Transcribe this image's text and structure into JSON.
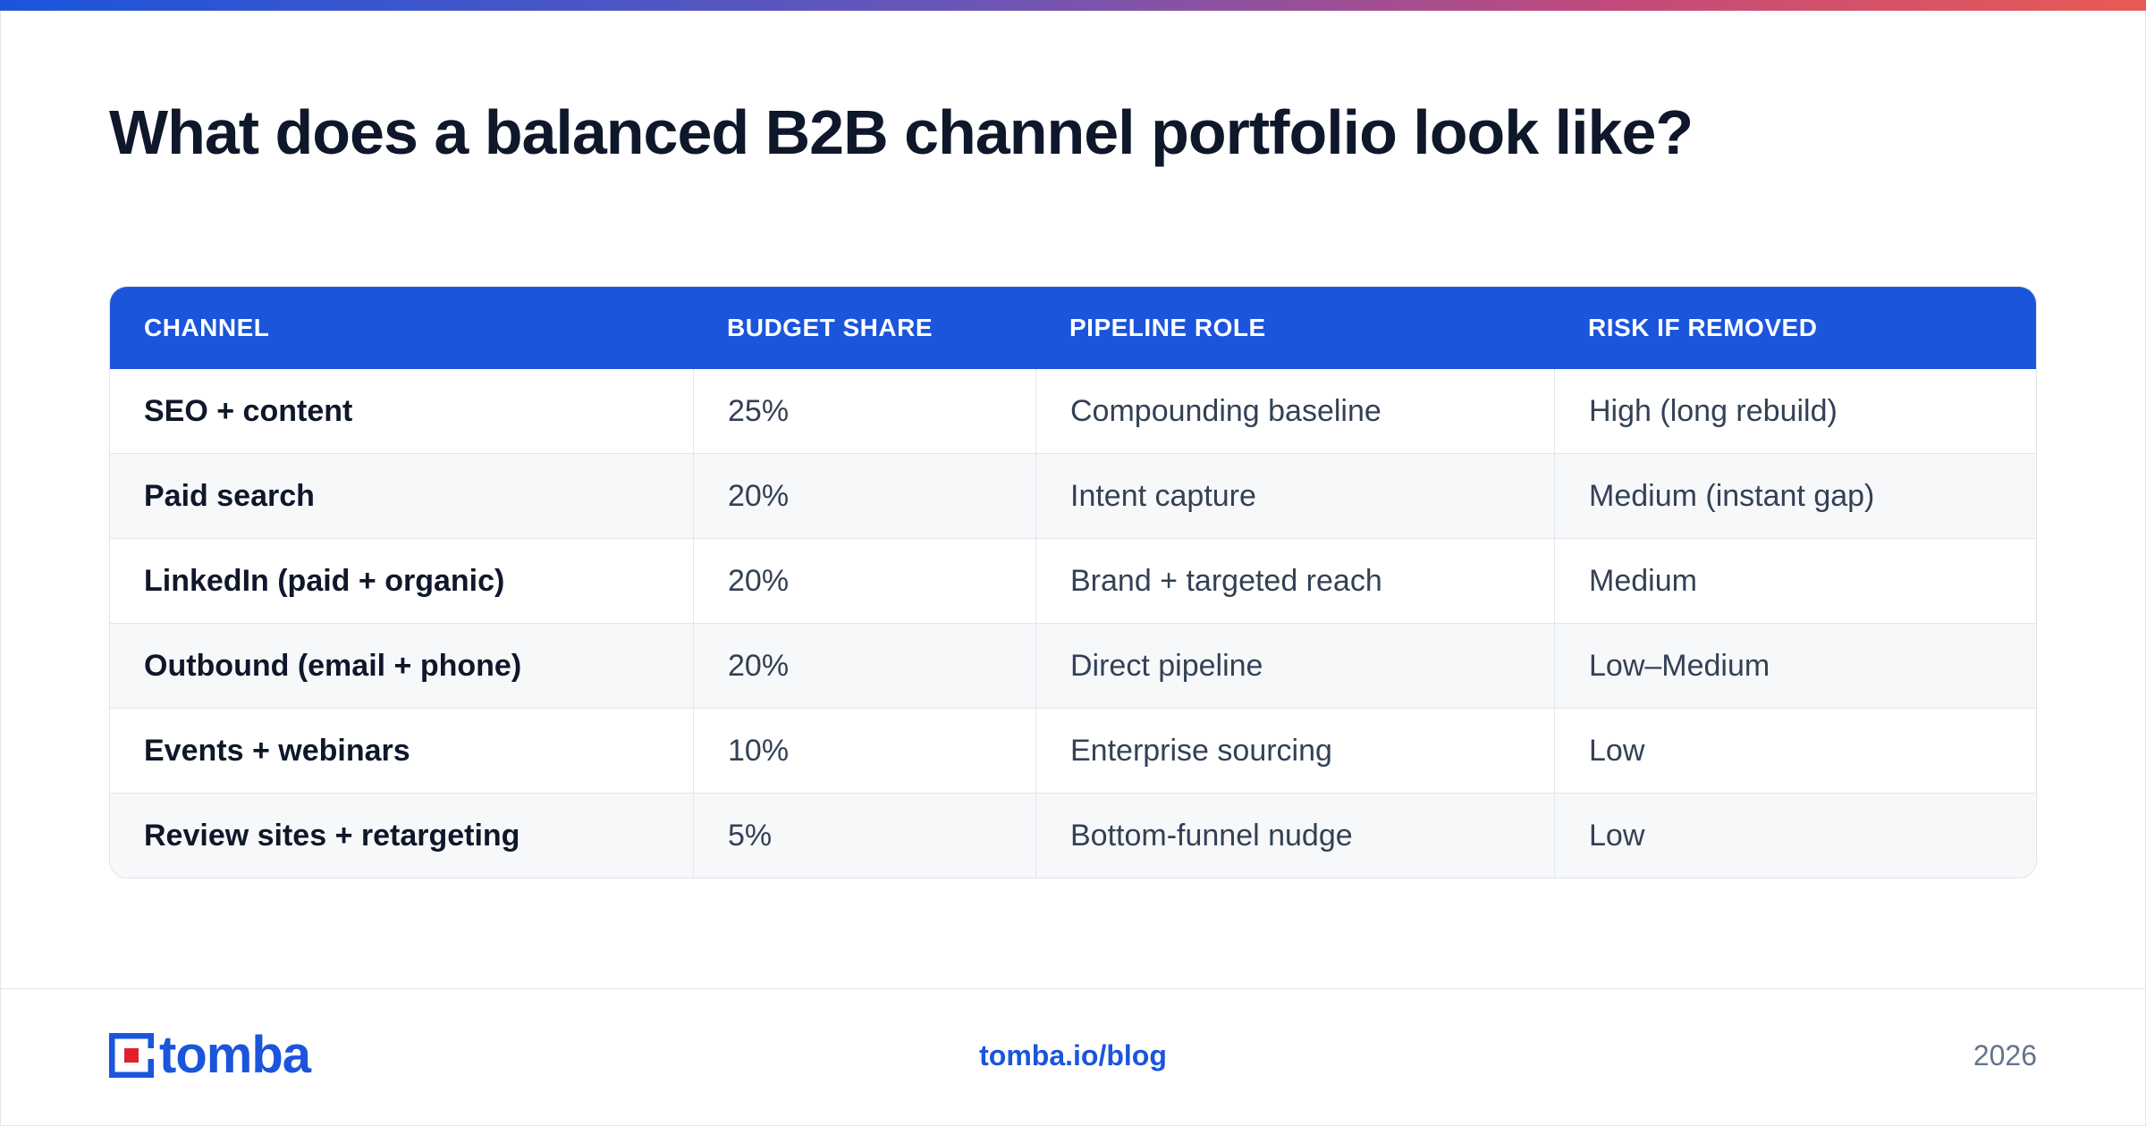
{
  "title": "What does a balanced B2B channel portfolio look like?",
  "table": {
    "headers": [
      "CHANNEL",
      "BUDGET SHARE",
      "PIPELINE ROLE",
      "RISK IF REMOVED"
    ],
    "rows": [
      [
        "SEO + content",
        "25%",
        "Compounding baseline",
        "High (long rebuild)"
      ],
      [
        "Paid search",
        "20%",
        "Intent capture",
        "Medium (instant gap)"
      ],
      [
        "LinkedIn (paid + organic)",
        "20%",
        "Brand + targeted reach",
        "Medium"
      ],
      [
        "Outbound (email + phone)",
        "20%",
        "Direct pipeline",
        "Low–Medium"
      ],
      [
        "Events + webinars",
        "10%",
        "Enterprise sourcing",
        "Low"
      ],
      [
        "Review sites + retargeting",
        "5%",
        "Bottom-funnel nudge",
        "Low"
      ]
    ]
  },
  "footer": {
    "logo_text": "tomba",
    "logo_icon": "tomba-logo-icon",
    "url": "tomba.io/blog",
    "year": "2026"
  },
  "colors": {
    "accent": "#1b55dc",
    "logo_red": "#e0202a",
    "title": "#0f172a"
  }
}
